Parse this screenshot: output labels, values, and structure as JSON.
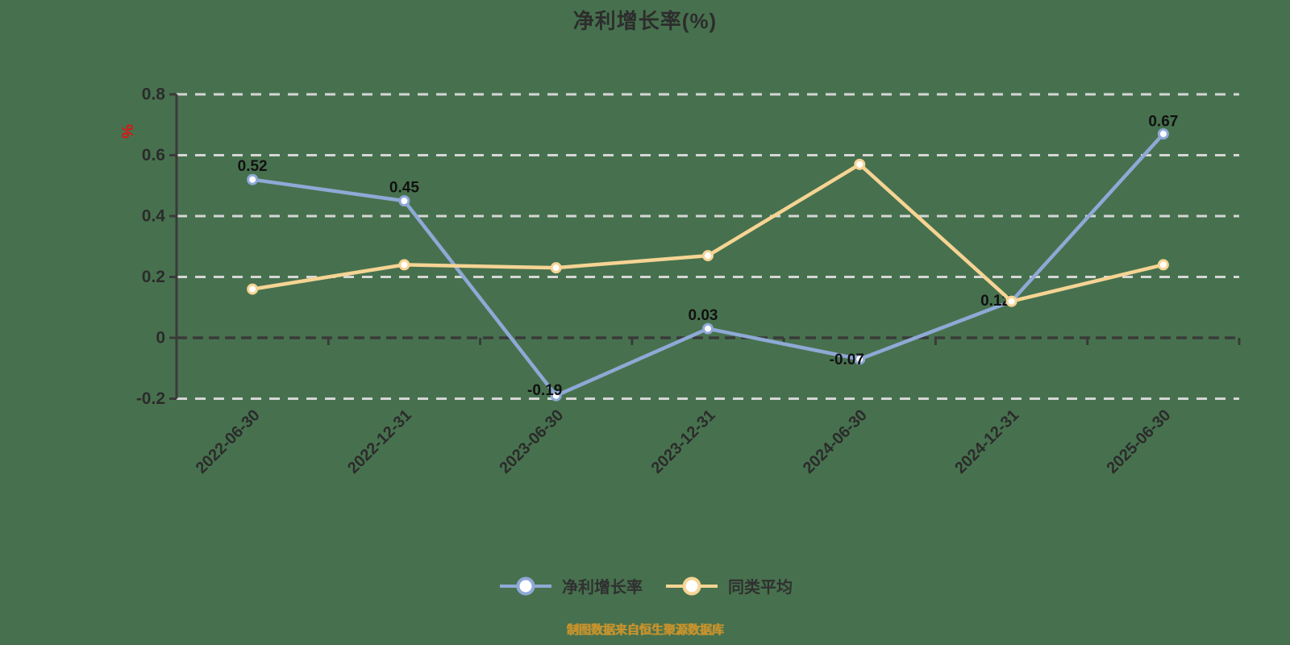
{
  "title": "净利增长率(%)",
  "source_note": "制图数据来自恒生聚源数据库",
  "style": {
    "background": "#47714E",
    "axis_color": "#3a3a3a",
    "grid_color": "#d6d6d6",
    "tick_label_color": "#2b2b2b",
    "data_label_color": "#111111",
    "unit_label_color": "#e01212",
    "source_color": "#c3922e",
    "title_color": "#2d2d2d"
  },
  "y_axis": {
    "unit_label": "%",
    "tick_labels": [
      "-0.2",
      "0",
      "0.2",
      "0.4",
      "0.6",
      "0.8"
    ]
  },
  "chart_data": {
    "type": "line",
    "title": "净利增长率(%)",
    "categories": [
      "2022-06-30",
      "2022-12-31",
      "2023-06-30",
      "2023-12-31",
      "2024-06-30",
      "2024-12-31",
      "2025-06-30"
    ],
    "series": [
      {
        "name": "净利增长率",
        "color": "#8FA9D6",
        "marker_fill": "#ffffff",
        "values": [
          0.52,
          0.45,
          -0.19,
          0.03,
          -0.07,
          0.12,
          0.67
        ],
        "point_labels": [
          "0.52",
          "0.45",
          "-0.19",
          "0.03",
          "-0.07",
          "0.12",
          "0.67"
        ],
        "label_offsets": [
          [
            0,
            -16
          ],
          [
            0,
            -16
          ],
          [
            -14,
            -6
          ],
          [
            -6,
            -16
          ],
          [
            -16,
            1
          ],
          [
            -20,
            0
          ],
          [
            0,
            -15
          ]
        ]
      },
      {
        "name": "同类平均",
        "color": "#F6D494",
        "marker_fill": "#ffffff",
        "values": [
          0.16,
          0.24,
          0.23,
          0.27,
          0.57,
          0.12,
          0.24
        ],
        "point_labels": null
      }
    ],
    "ylim": [
      -0.2,
      0.8
    ],
    "yticks": [
      -0.2,
      0,
      0.2,
      0.4,
      0.6,
      0.8
    ],
    "grid": true,
    "x_label_rotation": -45,
    "legend_position": "bottom"
  }
}
